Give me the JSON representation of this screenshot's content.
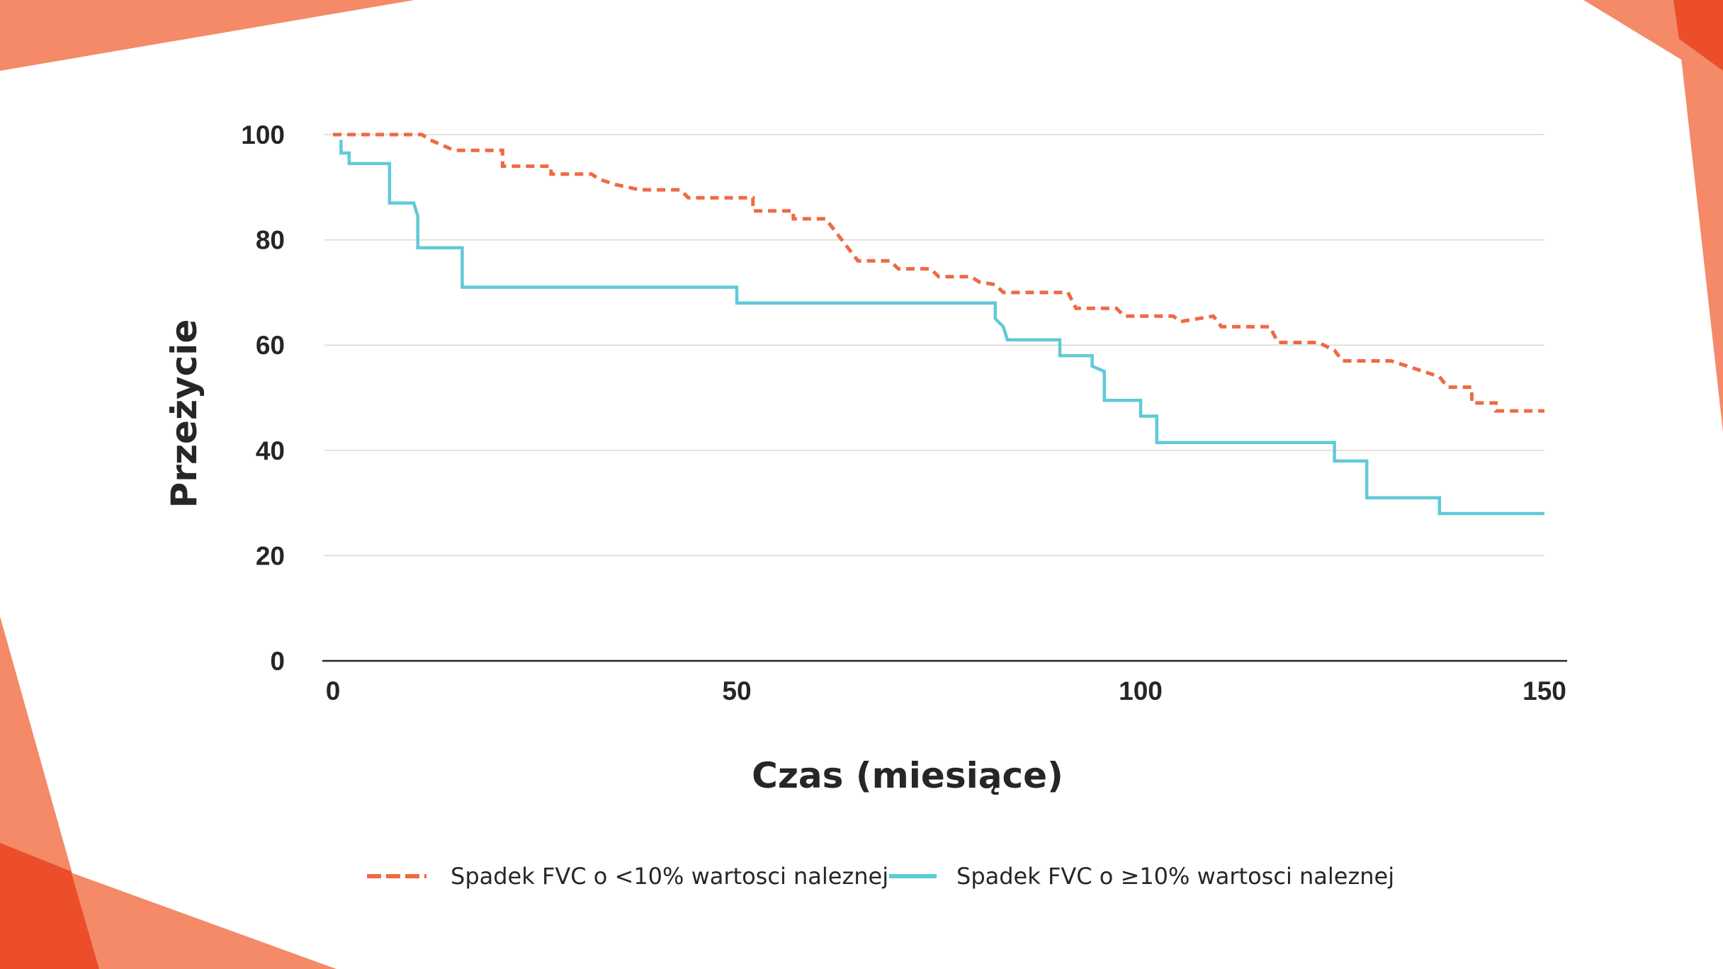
{
  "colors": {
    "series_lt10": "#ee6a43",
    "series_ge10": "#5fcad8",
    "grid": "#d9d9d9",
    "axis": "#262626",
    "deco_light": "#f48a68",
    "deco_dark": "#ec4d2b"
  },
  "chart_data": {
    "type": "line",
    "subtype": "kaplan-meier step",
    "xlabel": "Czas (miesiące)",
    "ylabel": "Przeżycie",
    "xlim": [
      0,
      150
    ],
    "ylim": [
      0,
      100
    ],
    "x_ticks": [
      "0",
      "50",
      "100",
      "150"
    ],
    "y_ticks": [
      "0",
      "20",
      "40",
      "60",
      "80",
      "100"
    ],
    "grid": "horizontal",
    "legend_position": "bottom",
    "series": [
      {
        "name": "Spadek FVC o <10% wartosci naleznej",
        "style": "dashed",
        "color": "#ee6a43",
        "points": [
          [
            0,
            100
          ],
          [
            11,
            100
          ],
          [
            12,
            99
          ],
          [
            15,
            97
          ],
          [
            21,
            97
          ],
          [
            21,
            94
          ],
          [
            27,
            94
          ],
          [
            27,
            92.5
          ],
          [
            32,
            92.5
          ],
          [
            33,
            91.5
          ],
          [
            35,
            90.5
          ],
          [
            38,
            89.5
          ],
          [
            43,
            89.5
          ],
          [
            44,
            88
          ],
          [
            52,
            88
          ],
          [
            52,
            85.5
          ],
          [
            57,
            85.5
          ],
          [
            57,
            84
          ],
          [
            61,
            84
          ],
          [
            62,
            82
          ],
          [
            63,
            80
          ],
          [
            65,
            76
          ],
          [
            69,
            76
          ],
          [
            70,
            74.5
          ],
          [
            74,
            74.5
          ],
          [
            75,
            73
          ],
          [
            79,
            73
          ],
          [
            80,
            72
          ],
          [
            82,
            71.5
          ],
          [
            83,
            70
          ],
          [
            91,
            70
          ],
          [
            92,
            67
          ],
          [
            97,
            67
          ],
          [
            98,
            65.5
          ],
          [
            104,
            65.5
          ],
          [
            105,
            64.5
          ],
          [
            109,
            65.5
          ],
          [
            110,
            63.5
          ],
          [
            116,
            63.5
          ],
          [
            117,
            60.5
          ],
          [
            122,
            60.5
          ],
          [
            124,
            59
          ],
          [
            125,
            57
          ],
          [
            131,
            57
          ],
          [
            133,
            56
          ],
          [
            135,
            55
          ],
          [
            137,
            54
          ],
          [
            138,
            52
          ],
          [
            141,
            52
          ],
          [
            141,
            49
          ],
          [
            144,
            49
          ],
          [
            144,
            47.5
          ],
          [
            150,
            47.5
          ]
        ]
      },
      {
        "name": "Spadek FVC o ≥10% wartosci naleznej",
        "style": "solid",
        "color": "#5fcad8",
        "points": [
          [
            1,
            99
          ],
          [
            1,
            96.5
          ],
          [
            2,
            96.5
          ],
          [
            2,
            94.5
          ],
          [
            7,
            94.5
          ],
          [
            7,
            87
          ],
          [
            10,
            87
          ],
          [
            10.5,
            84.5
          ],
          [
            10.5,
            78.5
          ],
          [
            16,
            78.5
          ],
          [
            16,
            71
          ],
          [
            50,
            71
          ],
          [
            50,
            68
          ],
          [
            82,
            68
          ],
          [
            82,
            65
          ],
          [
            83,
            63.5
          ],
          [
            83.5,
            61
          ],
          [
            90,
            61
          ],
          [
            90,
            58
          ],
          [
            94,
            58
          ],
          [
            94,
            56
          ],
          [
            95.5,
            55
          ],
          [
            95.5,
            49.5
          ],
          [
            100,
            49.5
          ],
          [
            100,
            46.5
          ],
          [
            102,
            46.5
          ],
          [
            102,
            41.5
          ],
          [
            124,
            41.5
          ],
          [
            124,
            38
          ],
          [
            128,
            38
          ],
          [
            128,
            31
          ],
          [
            137,
            31
          ],
          [
            137,
            28
          ],
          [
            150,
            28
          ]
        ]
      }
    ]
  }
}
